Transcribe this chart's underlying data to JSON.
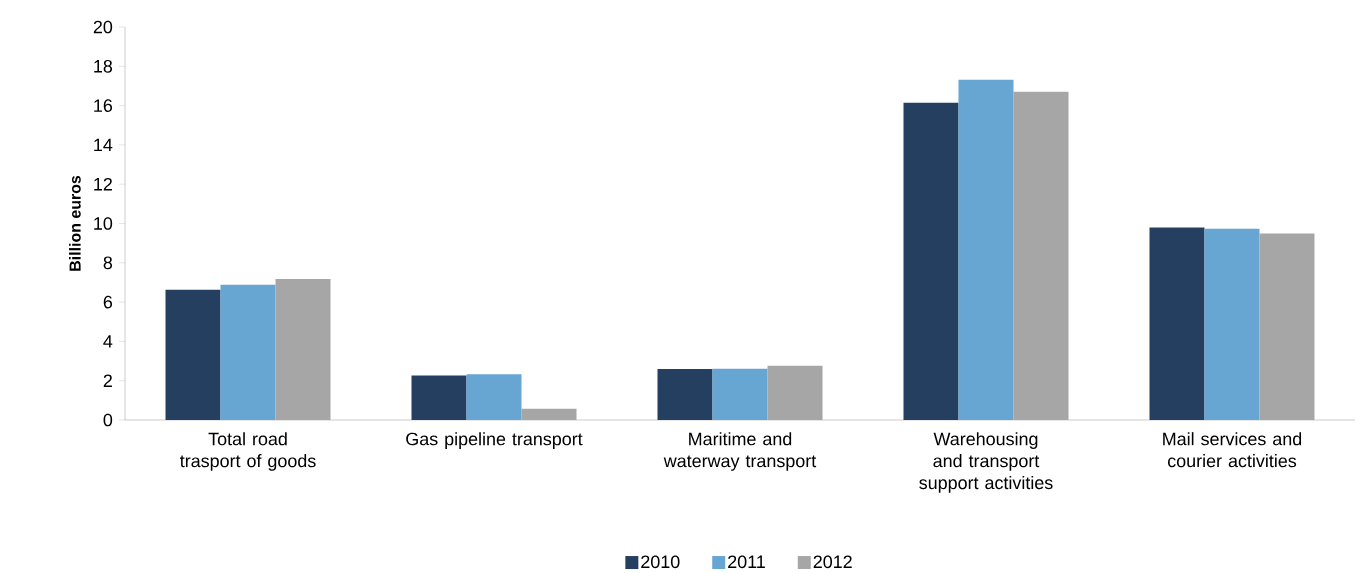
{
  "chart_data": {
    "type": "bar",
    "ylabel": "Billion euros",
    "categories": [
      "Total road trasport of goods",
      "Gas pipeline transport",
      "Maritime and waterway transport",
      "Warehousing and transport support activities",
      "Mail services and courier activities"
    ],
    "series": [
      {
        "name": "2010",
        "color": "#253f60",
        "values": [
          6.63,
          2.26,
          2.6,
          16.15,
          9.8
        ]
      },
      {
        "name": "2011",
        "color": "#67a5d3",
        "values": [
          6.88,
          2.33,
          2.61,
          17.32,
          9.73
        ]
      },
      {
        "name": "2012",
        "color": "#a6a6a6",
        "values": [
          7.18,
          0.57,
          2.76,
          16.71,
          9.49
        ]
      }
    ],
    "ylim": [
      0,
      20
    ],
    "yticks": [
      0,
      2,
      4,
      6,
      8,
      10,
      12,
      14,
      16,
      18,
      20
    ],
    "legend": "bottom"
  }
}
